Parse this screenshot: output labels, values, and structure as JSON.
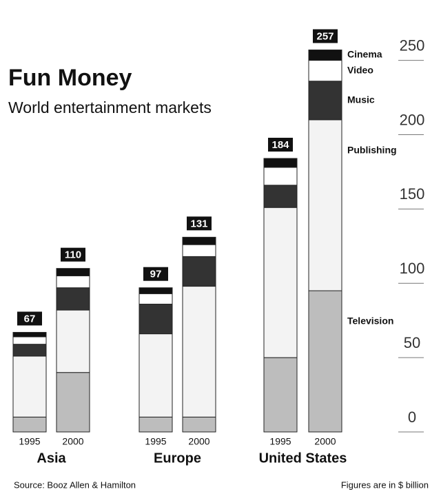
{
  "chart_data": {
    "type": "stacked_bar",
    "title": "Fun Money",
    "subtitle": "World entertainment markets",
    "categories": [
      "1995",
      "2000",
      "1995",
      "2000",
      "1995",
      "2000"
    ],
    "groups": [
      "Asia",
      "Europe",
      "United States"
    ],
    "totals": [
      67,
      110,
      97,
      131,
      184,
      257
    ],
    "series": [
      {
        "name": "Television",
        "color": "#bdbdbd",
        "values": [
          10,
          40,
          10,
          10,
          50,
          95
        ]
      },
      {
        "name": "Publishing",
        "color": "#f3f3f3",
        "values": [
          41,
          42,
          56,
          88,
          101,
          115
        ]
      },
      {
        "name": "Music",
        "color": "#333333",
        "values": [
          8,
          15,
          20,
          20,
          15,
          26
        ]
      },
      {
        "name": "Video",
        "color": "#ffffff",
        "values": [
          5,
          8,
          7,
          8,
          12,
          14
        ]
      },
      {
        "name": "Cinema",
        "color": "#111111",
        "values": [
          3,
          5,
          4,
          5,
          6,
          7
        ]
      }
    ],
    "ylim": [
      0,
      260
    ],
    "yticks": [
      0,
      50,
      100,
      150,
      200,
      250
    ],
    "source": "Source: Booz Allen & Hamilton",
    "note": "Figures are in $ billion"
  }
}
